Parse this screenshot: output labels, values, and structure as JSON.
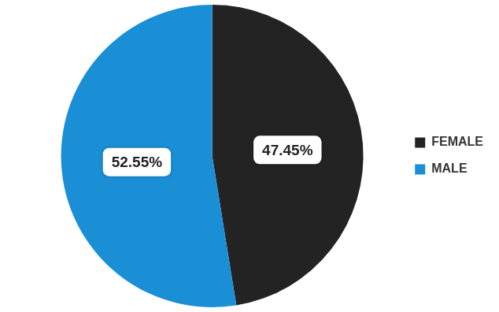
{
  "chart_data": {
    "type": "pie",
    "categories": [
      "FEMALE",
      "MALE"
    ],
    "values": [
      47.45,
      52.55
    ],
    "value_labels": [
      "47.45%",
      "52.55%"
    ],
    "colors": [
      "#232323",
      "#1a8fd6"
    ],
    "data_labels": true,
    "legend": "right"
  }
}
